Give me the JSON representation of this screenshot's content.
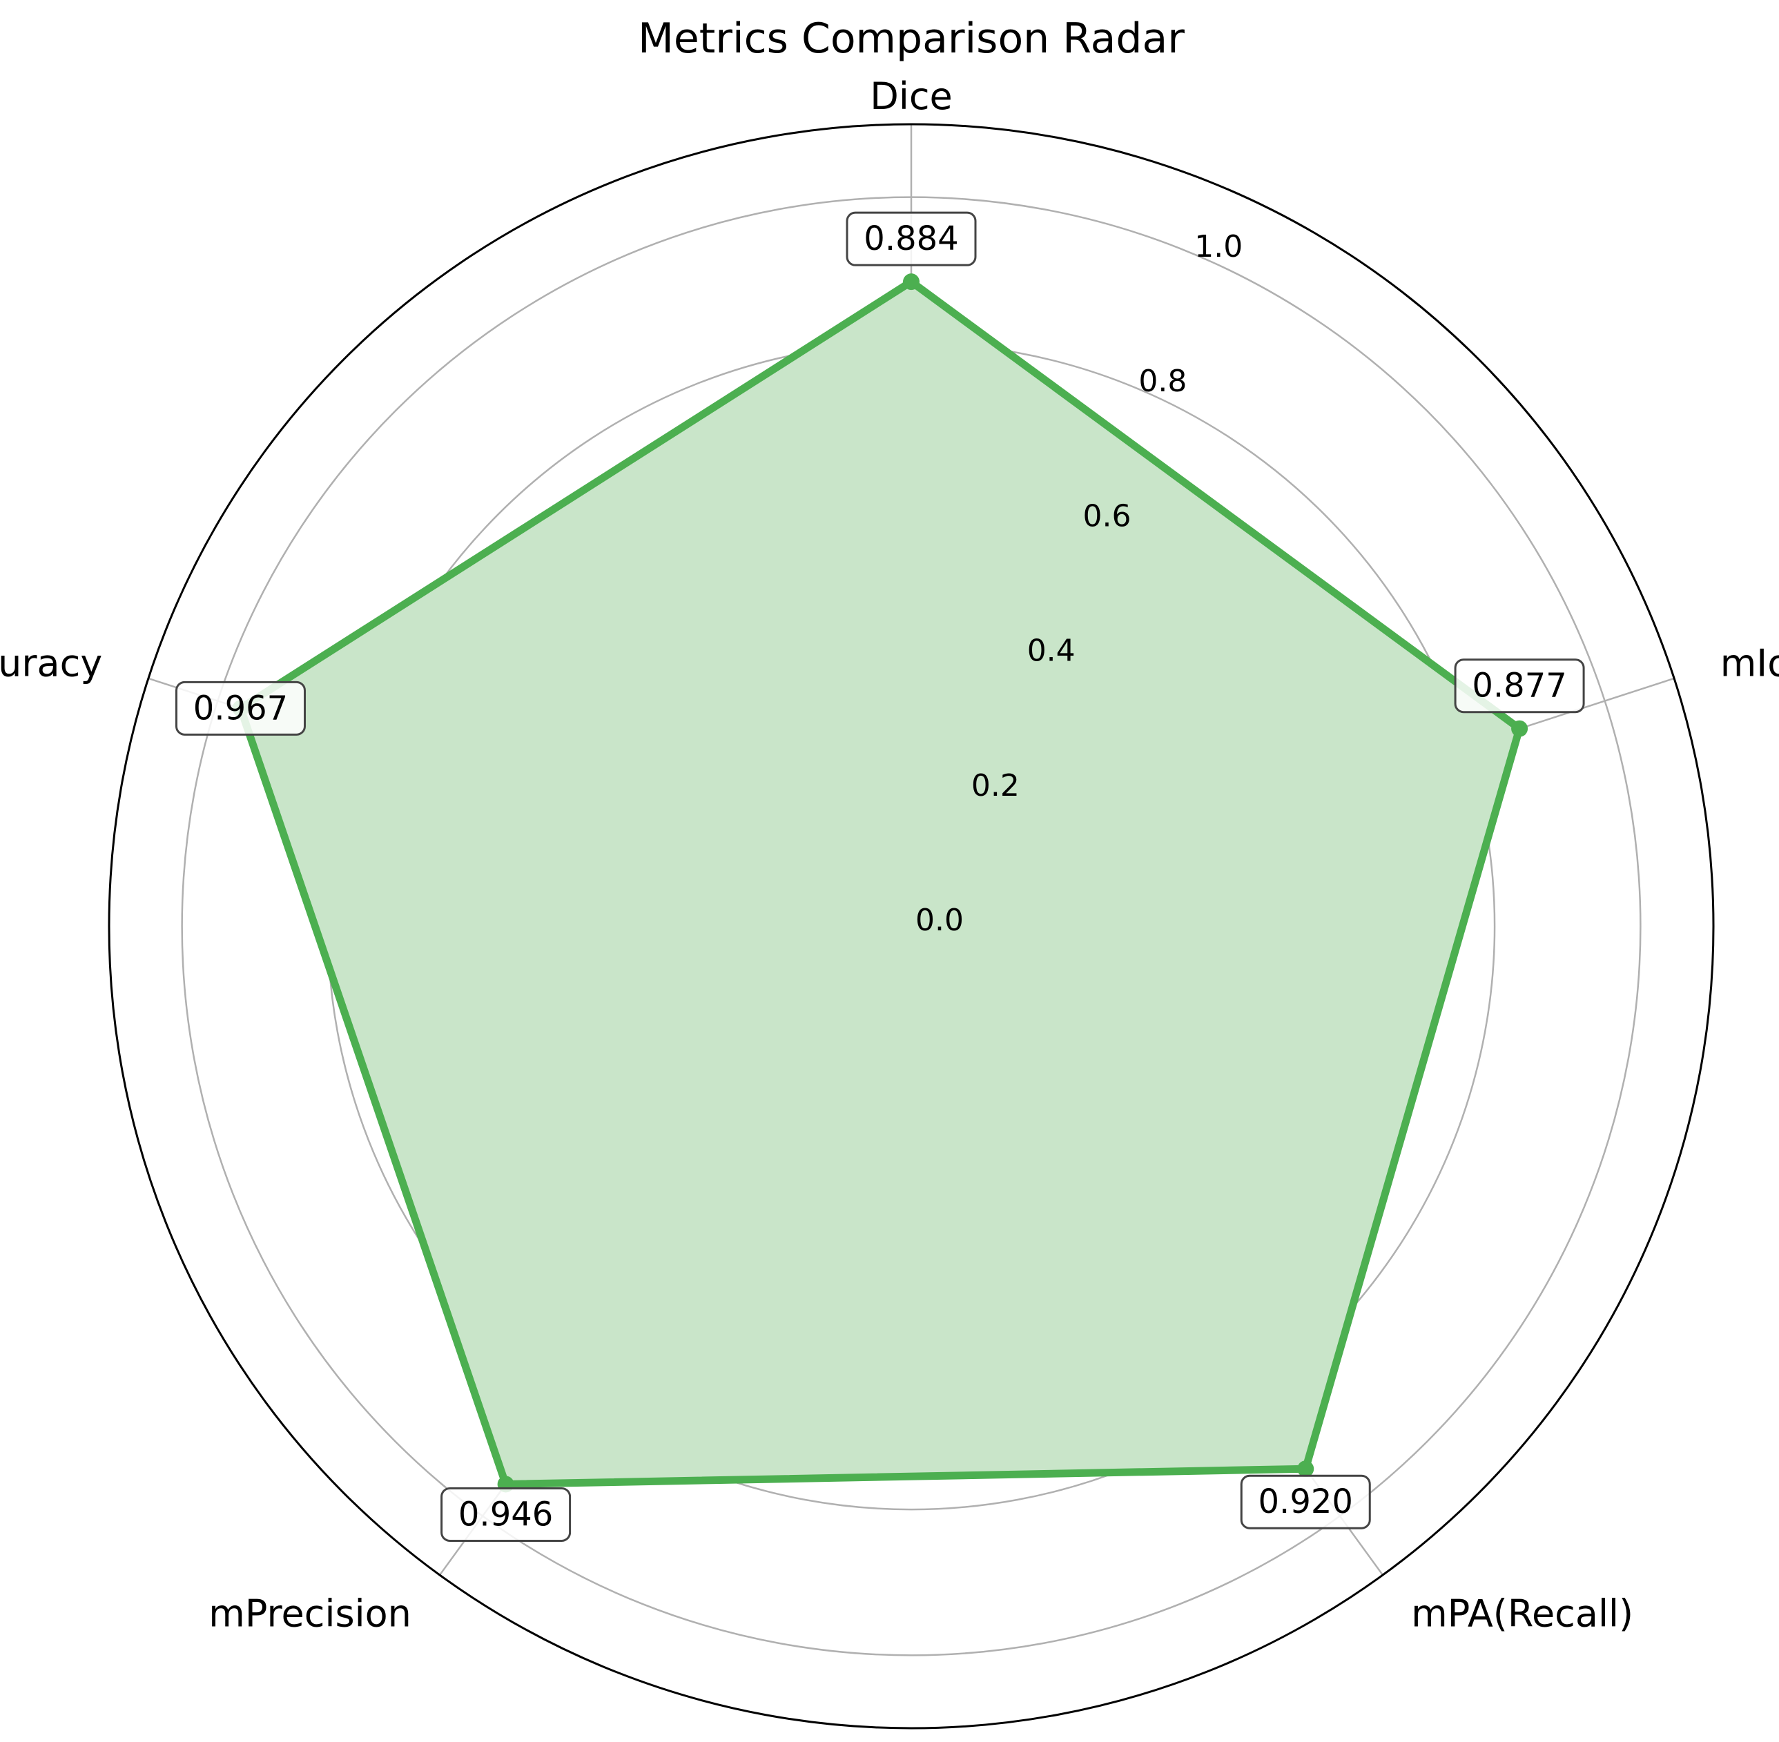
{
  "chart_data": {
    "type": "radar",
    "title": "Metrics Comparison Radar",
    "categories": [
      "Dice",
      "mIoU",
      "mPA(Recall)",
      "mPrecision",
      "Accuracy"
    ],
    "series": [
      {
        "values": [
          0.884,
          0.877,
          0.92,
          0.946,
          0.967
        ]
      }
    ],
    "value_labels": [
      "0.884",
      "0.877",
      "0.920",
      "0.946",
      "0.967"
    ],
    "radial_ticks": [
      0.0,
      0.2,
      0.4,
      0.6,
      0.8,
      1.0
    ],
    "radial_tick_labels": [
      "0.0",
      "0.2",
      "0.4",
      "0.6",
      "0.8",
      "1.0"
    ],
    "rlim": [
      0,
      1.1
    ],
    "grid": true,
    "colors": {
      "line": "#4caf50",
      "fill": "#c9e5c9",
      "grid": "#b0b0b0"
    }
  }
}
